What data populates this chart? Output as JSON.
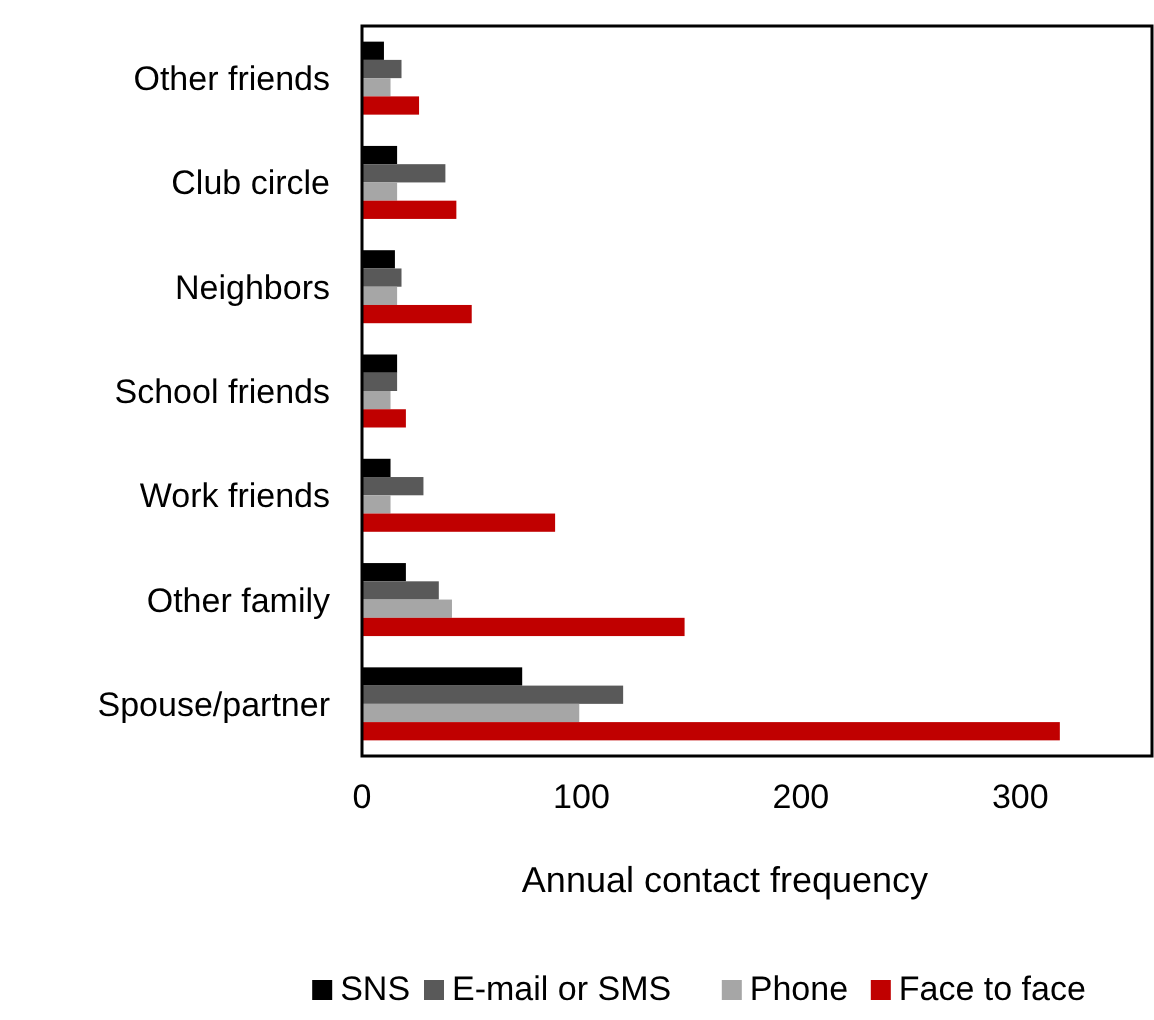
{
  "chart_data": {
    "type": "bar",
    "orientation": "horizontal",
    "xlabel": "Annual contact frequency",
    "categories": [
      "Other friends",
      "Club circle",
      "Neighbors",
      "School friends",
      "Work friends",
      "Other family",
      "Spouse/partner"
    ],
    "series": [
      {
        "name": "SNS",
        "color": "#000000",
        "values": [
          10,
          16,
          15,
          16,
          13,
          20,
          73
        ]
      },
      {
        "name": "E-mail or SMS",
        "color": "#595959",
        "values": [
          18,
          38,
          18,
          16,
          28,
          35,
          119
        ]
      },
      {
        "name": "Phone",
        "color": "#a6a6a6",
        "values": [
          13,
          16,
          16,
          13,
          13,
          41,
          99
        ]
      },
      {
        "name": "Face to face",
        "color": "#c00000",
        "values": [
          26,
          43,
          50,
          20,
          88,
          147,
          318
        ]
      }
    ],
    "xlim": [
      0,
      360
    ],
    "xticks": [
      0,
      100,
      200,
      300
    ],
    "grid": false,
    "legend": "bottom"
  }
}
